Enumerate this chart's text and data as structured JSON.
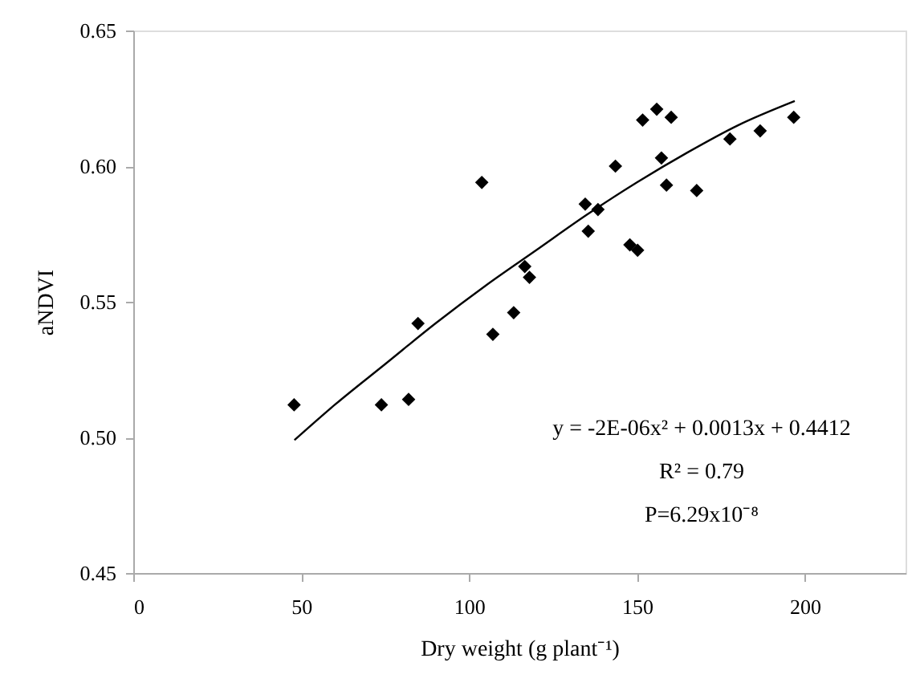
{
  "chart_data": {
    "type": "scatter",
    "xlabel": "Dry weight (g plant⁻¹)",
    "ylabel": "aNDVI",
    "xlim": [
      0,
      230
    ],
    "ylim": [
      0.45,
      0.65
    ],
    "xticks": [
      0,
      50,
      100,
      150,
      200
    ],
    "yticks": [
      0.45,
      {
        "value": 0.5,
        "label": "0.50"
      },
      0.55,
      {
        "value": 0.6,
        "label": "0.60"
      },
      0.65
    ],
    "grid": false,
    "series": [
      {
        "marker": "diamond",
        "color": "#000000",
        "x": [
          47.9,
          73.9,
          82.0,
          84.8,
          107.1,
          113.3,
          116.6,
          118.0,
          103.8,
          134.6,
          138.4,
          135.5,
          143.6,
          147.9,
          150.2,
          151.7,
          155.9,
          160.2,
          157.3,
          158.8,
          167.8,
          177.7,
          186.7,
          196.7
        ],
        "values": [
          0.512,
          0.512,
          0.514,
          0.542,
          0.538,
          0.546,
          0.563,
          0.559,
          0.594,
          0.586,
          0.584,
          0.576,
          0.6,
          0.571,
          0.569,
          0.617,
          0.621,
          0.618,
          0.603,
          0.593,
          0.591,
          0.61,
          0.613,
          0.618
        ]
      },
      {
        "type": "line",
        "marker": "none",
        "line_style": "solid",
        "color": "#000000",
        "x": [
          48,
          60,
          75,
          90,
          105,
          120,
          135,
          150,
          165,
          180,
          197
        ],
        "values": [
          0.499,
          0.512,
          0.527,
          0.542,
          0.556,
          0.569,
          0.582,
          0.594,
          0.605,
          0.615,
          0.624
        ]
      }
    ],
    "annotations": [
      "y = -2E-06x² + 0.0013x + 0.4412",
      "R² = 0.79",
      "P=6.29x10⁻⁸"
    ]
  }
}
